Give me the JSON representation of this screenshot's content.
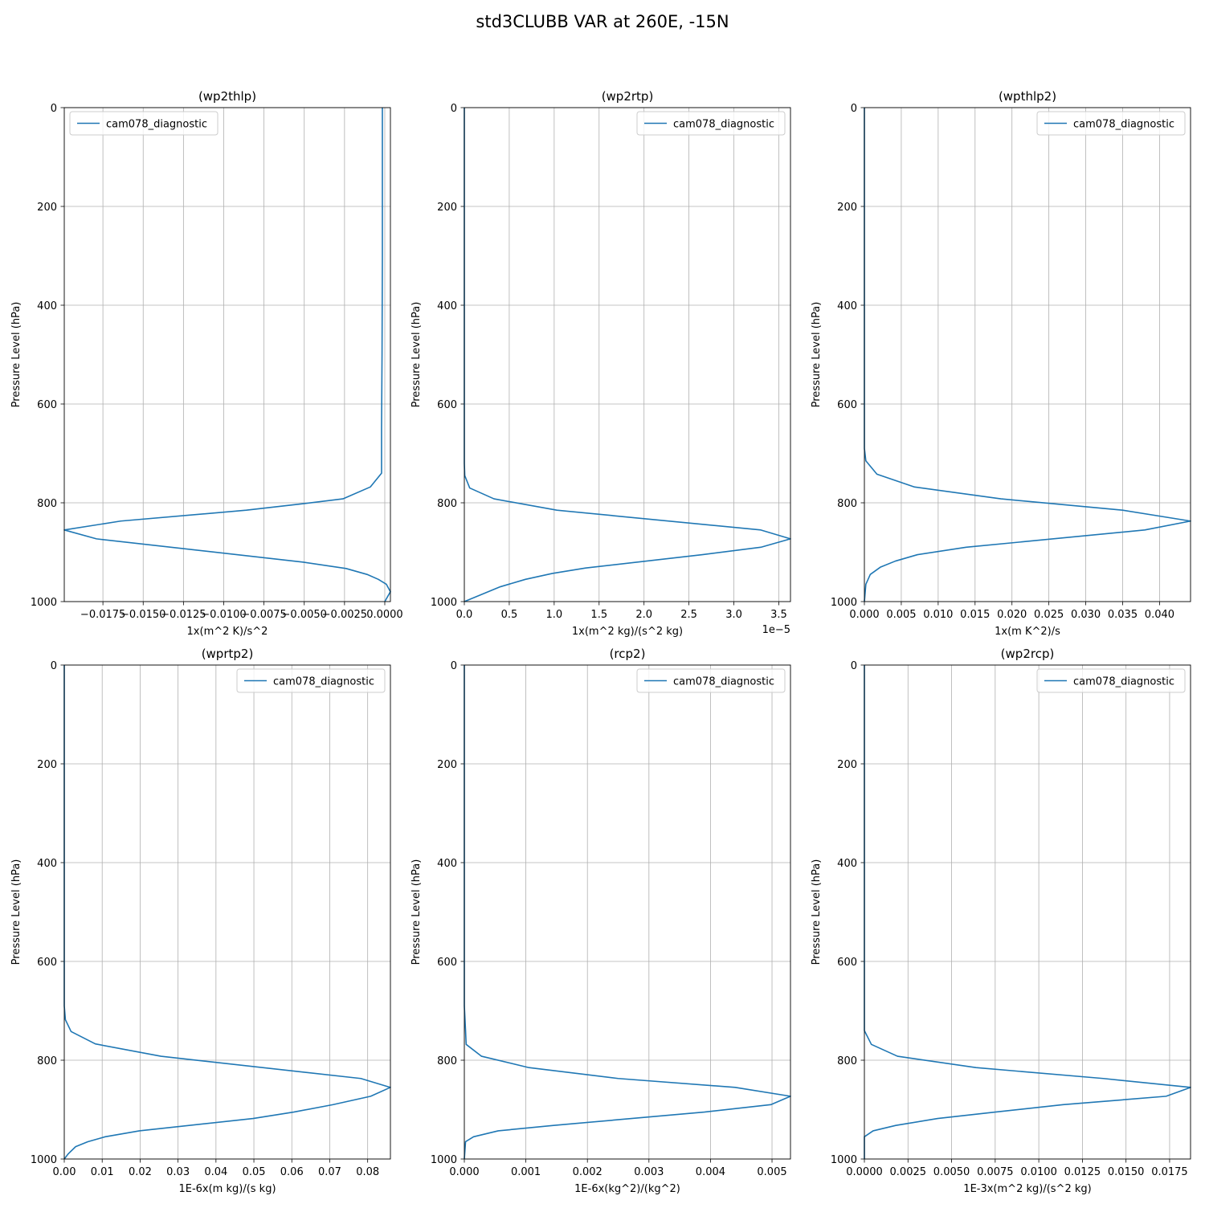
{
  "figure": {
    "suptitle": "std3CLUBB VAR at 260E, -15N",
    "line_color": "#1f77b4",
    "grid_color": "#b0b0b0"
  },
  "chart_data": [
    {
      "type": "line",
      "title": "(wp2thlp)",
      "xlabel": "1x(m^2 K)/s^2",
      "ylabel": "Pressure Level (hPa)",
      "legend": "upper left",
      "grid": true,
      "y_inverted": true,
      "ylim": [
        0,
        1000
      ],
      "xlim": [
        -0.0199,
        0.00035
      ],
      "xticks": [
        -0.0175,
        -0.015,
        -0.0125,
        -0.01,
        -0.0075,
        -0.005,
        -0.0025,
        0.0
      ],
      "xtick_labels": [
        "−0.0175",
        "−0.0150",
        "−0.0125",
        "−0.0100",
        "−0.0075",
        "−0.0050",
        "−0.0025",
        "0.0000"
      ],
      "yticks": [
        0,
        200,
        400,
        600,
        800,
        1000
      ],
      "offset_text": "",
      "series": [
        {
          "name": "cam078_diagnostic",
          "x": [
            -0.00015,
            -0.00015,
            -0.00017,
            -0.0002,
            -0.0002,
            -0.0009,
            -0.0026,
            -0.0051,
            -0.0086,
            -0.0164,
            -0.0199,
            -0.0179,
            -0.0051,
            -0.0024,
            -0.0011,
            -0.0004,
            0.0001,
            0.00035,
            0.0
          ],
          "y": [
            0,
            300,
            500,
            650,
            740,
            768,
            792,
            802,
            815,
            837,
            855,
            873,
            920,
            933,
            945,
            955,
            965,
            980,
            1000
          ]
        }
      ]
    },
    {
      "type": "line",
      "title": "(wp2rtp)",
      "xlabel": "1x(m^2 kg)/(s^2 kg)",
      "ylabel": "Pressure Level (hPa)",
      "legend": "upper right",
      "grid": true,
      "y_inverted": true,
      "ylim": [
        0,
        1000
      ],
      "xlim": [
        0,
        3.63e-05
      ],
      "xticks": [
        0,
        5e-06,
        1e-05,
        1.5e-05,
        2e-05,
        2.5e-05,
        3e-05,
        3.5e-05
      ],
      "xtick_labels": [
        "0.0",
        "0.5",
        "1.0",
        "1.5",
        "2.0",
        "2.5",
        "3.0",
        "3.5"
      ],
      "yticks": [
        0,
        200,
        400,
        600,
        800,
        1000
      ],
      "offset_text": "1e−5",
      "series": [
        {
          "name": "cam078_diagnostic",
          "x": [
            0,
            0,
            5e-08,
            6e-07,
            3.3e-06,
            1.03e-05,
            3.3e-05,
            3.63e-05,
            3.3e-05,
            2.65e-05,
            1.35e-05,
            9.8e-06,
            6.8e-06,
            4e-06,
            0
          ],
          "y": [
            0,
            720,
            745,
            770,
            792,
            815,
            855,
            873,
            890,
            905,
            932,
            943,
            955,
            970,
            1000
          ]
        }
      ]
    },
    {
      "type": "line",
      "title": "(wpthlp2)",
      "xlabel": "1x(m K^2)/s",
      "ylabel": "Pressure Level (hPa)",
      "legend": "upper right",
      "grid": true,
      "y_inverted": true,
      "ylim": [
        0,
        1000
      ],
      "xlim": [
        0,
        0.0442
      ],
      "xticks": [
        0,
        0.005,
        0.01,
        0.015,
        0.02,
        0.025,
        0.03,
        0.035,
        0.04
      ],
      "xtick_labels": [
        "0.000",
        "0.005",
        "0.010",
        "0.015",
        "0.020",
        "0.025",
        "0.030",
        "0.035",
        "0.040"
      ],
      "yticks": [
        0,
        200,
        400,
        600,
        800,
        1000
      ],
      "offset_text": "",
      "series": [
        {
          "name": "cam078_diagnostic",
          "x": [
            0,
            0,
            0.0002,
            0.0017,
            0.0068,
            0.0185,
            0.035,
            0.0442,
            0.038,
            0.0138,
            0.0072,
            0.0042,
            0.0022,
            0.0008,
            0.0002,
            0
          ],
          "y": [
            0,
            690,
            715,
            742,
            768,
            792,
            815,
            837,
            855,
            890,
            905,
            918,
            930,
            945,
            965,
            1000
          ]
        }
      ]
    },
    {
      "type": "line",
      "title": "(wprtp2)",
      "xlabel": "1E-6x(m kg)/(s kg)",
      "ylabel": "Pressure Level (hPa)",
      "legend": "upper right",
      "grid": true,
      "y_inverted": true,
      "ylim": [
        0,
        1000
      ],
      "xlim": [
        0,
        0.086
      ],
      "xticks": [
        0,
        0.01,
        0.02,
        0.03,
        0.04,
        0.05,
        0.06,
        0.07,
        0.08
      ],
      "xtick_labels": [
        "0.00",
        "0.01",
        "0.02",
        "0.03",
        "0.04",
        "0.05",
        "0.06",
        "0.07",
        "0.08"
      ],
      "yticks": [
        0,
        200,
        400,
        600,
        800,
        1000
      ],
      "offset_text": "",
      "series": [
        {
          "name": "cam078_diagnostic",
          "x": [
            0,
            0,
            0.0003,
            0.0018,
            0.0082,
            0.0255,
            0.0782,
            0.086,
            0.0808,
            0.0708,
            0.0605,
            0.0498,
            0.0198,
            0.0108,
            0.0062,
            0.003,
            0.001,
            0
          ],
          "y": [
            0,
            690,
            718,
            742,
            767,
            792,
            837,
            855,
            873,
            890,
            905,
            918,
            943,
            955,
            965,
            975,
            990,
            1000
          ]
        }
      ]
    },
    {
      "type": "line",
      "title": "(rcp2)",
      "xlabel": "1E-6x(kg^2)/(kg^2)",
      "ylabel": "Pressure Level (hPa)",
      "legend": "upper right",
      "grid": true,
      "y_inverted": true,
      "ylim": [
        0,
        1000
      ],
      "xlim": [
        0,
        0.0053
      ],
      "xticks": [
        0,
        0.001,
        0.002,
        0.003,
        0.004,
        0.005
      ],
      "xtick_labels": [
        "0.000",
        "0.001",
        "0.002",
        "0.003",
        "0.004",
        "0.005"
      ],
      "yticks": [
        0,
        200,
        400,
        600,
        800,
        1000
      ],
      "offset_text": "",
      "series": [
        {
          "name": "cam078_diagnostic",
          "x": [
            0,
            0,
            2e-05,
            3e-05,
            0.00028,
            0.00105,
            0.0025,
            0.0044,
            0.0053,
            0.00498,
            0.0039,
            0.00145,
            0.00055,
            0.00015,
            2e-05,
            0
          ],
          "y": [
            0,
            690,
            740,
            768,
            792,
            815,
            837,
            855,
            873,
            890,
            905,
            932,
            943,
            955,
            965,
            1000
          ]
        }
      ]
    },
    {
      "type": "line",
      "title": "(wp2rcp)",
      "xlabel": "1E-3x(m^2 kg)/(s^2 kg)",
      "ylabel": "Pressure Level (hPa)",
      "legend": "upper right",
      "grid": true,
      "y_inverted": true,
      "ylim": [
        0,
        1000
      ],
      "xlim": [
        0,
        0.0187
      ],
      "xticks": [
        0,
        0.0025,
        0.005,
        0.0075,
        0.01,
        0.0125,
        0.015,
        0.0175
      ],
      "xtick_labels": [
        "0.0000",
        "0.0025",
        "0.0050",
        "0.0075",
        "0.0100",
        "0.0125",
        "0.0150",
        "0.0175"
      ],
      "yticks": [
        0,
        200,
        400,
        600,
        800,
        1000
      ],
      "offset_text": "",
      "series": [
        {
          "name": "cam078_diagnostic",
          "x": [
            0,
            0,
            0.0004,
            0.0019,
            0.0064,
            0.0137,
            0.0187,
            0.0173,
            0.0114,
            0.0075,
            0.0042,
            0.0018,
            0.0005,
            0,
            0
          ],
          "y": [
            0,
            740,
            768,
            792,
            815,
            837,
            855,
            873,
            890,
            905,
            918,
            932,
            943,
            955,
            1000
          ]
        }
      ]
    }
  ]
}
